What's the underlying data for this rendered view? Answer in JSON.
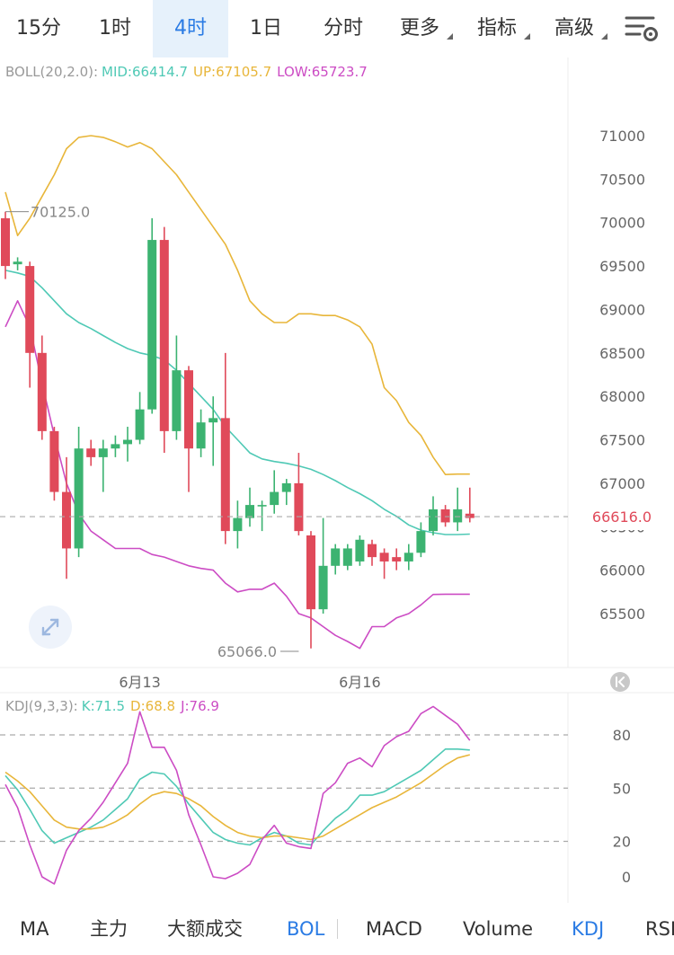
{
  "timeframe_tabs": [
    {
      "label": "15分",
      "active": false,
      "dropdown": false
    },
    {
      "label": "1时",
      "active": false,
      "dropdown": false
    },
    {
      "label": "4时",
      "active": true,
      "dropdown": false
    },
    {
      "label": "1日",
      "active": false,
      "dropdown": false
    },
    {
      "label": "分时",
      "active": false,
      "dropdown": false
    },
    {
      "label": "更多",
      "active": false,
      "dropdown": true
    },
    {
      "label": "指标",
      "active": false,
      "dropdown": true
    },
    {
      "label": "高级",
      "active": false,
      "dropdown": true
    }
  ],
  "settings_icon": "chart-settings-icon",
  "expand_icon": "expand-icon",
  "collapse_icon": "skip-left-icon",
  "colors": {
    "up": "#3cb371",
    "down": "#e04a5a",
    "mid": "#4fc9b5",
    "upper": "#e8b63a",
    "lower": "#cc4cc4",
    "k": "#4fc9b5",
    "d": "#e8b63a",
    "j": "#cc4cc4",
    "active": "#2a7be4"
  },
  "chart_data": [
    {
      "type": "candlestick",
      "indicator_label": "BOLL(20,2.0):",
      "mid_label": "MID:66414.7",
      "up_label": "UP:67105.7",
      "low_label": "LOW:65723.7",
      "y_ticks": [
        "71000",
        "70500",
        "70000",
        "69500",
        "69000",
        "68500",
        "68000",
        "67500",
        "67000",
        "66500",
        "66000",
        "65500"
      ],
      "ylim": [
        65200,
        71900
      ],
      "x_tick_labels": [
        {
          "label": "6月13",
          "index": 11
        },
        {
          "label": "6月16",
          "index": 29
        }
      ],
      "high_annotation": {
        "label": "70125.0",
        "value": 70125,
        "index": 0
      },
      "low_annotation": {
        "label": "65066.0",
        "value": 65066,
        "index": 24
      },
      "last_price": {
        "label": "66616.0",
        "value": 66616
      },
      "candles": [
        {
          "o": 70050,
          "h": 70125,
          "l": 69350,
          "c": 69500
        },
        {
          "o": 69520,
          "h": 69600,
          "l": 69450,
          "c": 69550
        },
        {
          "o": 69500,
          "h": 69550,
          "l": 68100,
          "c": 68500
        },
        {
          "o": 68500,
          "h": 68700,
          "l": 67500,
          "c": 67600
        },
        {
          "o": 67600,
          "h": 67650,
          "l": 66800,
          "c": 66900
        },
        {
          "o": 66900,
          "h": 67300,
          "l": 65900,
          "c": 66250
        },
        {
          "o": 66250,
          "h": 67650,
          "l": 66150,
          "c": 67400
        },
        {
          "o": 67400,
          "h": 67500,
          "l": 67200,
          "c": 67300
        },
        {
          "o": 67300,
          "h": 67500,
          "l": 66900,
          "c": 67400
        },
        {
          "o": 67400,
          "h": 67550,
          "l": 67300,
          "c": 67450
        },
        {
          "o": 67450,
          "h": 67650,
          "l": 67250,
          "c": 67500
        },
        {
          "o": 67500,
          "h": 68050,
          "l": 67450,
          "c": 67850
        },
        {
          "o": 67850,
          "h": 70050,
          "l": 67800,
          "c": 69800
        },
        {
          "o": 69800,
          "h": 69950,
          "l": 67350,
          "c": 67600
        },
        {
          "o": 67600,
          "h": 68700,
          "l": 67500,
          "c": 68300
        },
        {
          "o": 68300,
          "h": 68350,
          "l": 66900,
          "c": 67400
        },
        {
          "o": 67400,
          "h": 67850,
          "l": 67300,
          "c": 67700
        },
        {
          "o": 67700,
          "h": 68000,
          "l": 67200,
          "c": 67750
        },
        {
          "o": 67750,
          "h": 68500,
          "l": 66300,
          "c": 66450
        },
        {
          "o": 66450,
          "h": 66800,
          "l": 66250,
          "c": 66600
        },
        {
          "o": 66600,
          "h": 66950,
          "l": 66500,
          "c": 66750
        },
        {
          "o": 66750,
          "h": 66800,
          "l": 66450,
          "c": 66750
        },
        {
          "o": 66750,
          "h": 67150,
          "l": 66650,
          "c": 66900
        },
        {
          "o": 66900,
          "h": 67050,
          "l": 66750,
          "c": 67000
        },
        {
          "o": 67000,
          "h": 67350,
          "l": 66400,
          "c": 66450
        },
        {
          "o": 66400,
          "h": 66450,
          "l": 65100,
          "c": 65550
        },
        {
          "o": 65550,
          "h": 66600,
          "l": 65500,
          "c": 66050
        },
        {
          "o": 66050,
          "h": 66300,
          "l": 65950,
          "c": 66250
        },
        {
          "o": 66050,
          "h": 66300,
          "l": 66000,
          "c": 66250
        },
        {
          "o": 66100,
          "h": 66400,
          "l": 66050,
          "c": 66350
        },
        {
          "o": 66300,
          "h": 66350,
          "l": 66050,
          "c": 66150
        },
        {
          "o": 66200,
          "h": 66250,
          "l": 65900,
          "c": 66100
        },
        {
          "o": 66150,
          "h": 66250,
          "l": 66000,
          "c": 66100
        },
        {
          "o": 66100,
          "h": 66300,
          "l": 66000,
          "c": 66200
        },
        {
          "o": 66200,
          "h": 66550,
          "l": 66150,
          "c": 66450
        },
        {
          "o": 66450,
          "h": 66850,
          "l": 66400,
          "c": 66700
        },
        {
          "o": 66700,
          "h": 66750,
          "l": 66500,
          "c": 66550
        },
        {
          "o": 66550,
          "h": 66950,
          "l": 66450,
          "c": 66700
        },
        {
          "o": 66650,
          "h": 66950,
          "l": 66550,
          "c": 66600
        }
      ],
      "mid_values": [
        69450,
        69420,
        69380,
        69250,
        69100,
        68950,
        68850,
        68780,
        68700,
        68620,
        68550,
        68500,
        68470,
        68420,
        68300,
        68150,
        68000,
        67850,
        67650,
        67500,
        67350,
        67280,
        67250,
        67230,
        67200,
        67160,
        67100,
        67030,
        66950,
        66880,
        66800,
        66700,
        66620,
        66520,
        66460,
        66430,
        66410,
        66410,
        66414.7
      ],
      "upper_values": [
        70350,
        69850,
        70050,
        70300,
        70550,
        70850,
        70980,
        71000,
        70980,
        70930,
        70870,
        70920,
        70850,
        70700,
        70550,
        70350,
        70150,
        69950,
        69750,
        69450,
        69100,
        68950,
        68850,
        68850,
        68950,
        68950,
        68930,
        68930,
        68880,
        68800,
        68600,
        68100,
        67950,
        67700,
        67550,
        67300,
        67100,
        67105.7,
        67105.7
      ],
      "lower_values": [
        68800,
        69100,
        68800,
        68150,
        67550,
        67000,
        66650,
        66450,
        66350,
        66250,
        66250,
        66250,
        66180,
        66150,
        66100,
        66050,
        66020,
        66000,
        65850,
        65750,
        65780,
        65780,
        65850,
        65700,
        65500,
        65450,
        65350,
        65250,
        65180,
        65100,
        65350,
        65350,
        65450,
        65500,
        65600,
        65720,
        65723.7,
        65723.7,
        65723.7
      ]
    },
    {
      "type": "line",
      "indicator_label": "KDJ(9,3,3):",
      "k_label": "K:71.5",
      "d_label": "D:68.8",
      "j_label": "J:76.9",
      "y_ticks": [
        "80",
        "50",
        "20",
        "0"
      ],
      "ylim": [
        -8,
        108
      ],
      "series": [
        {
          "name": "K",
          "values": [
            57,
            49,
            38,
            26,
            19,
            22,
            25,
            28,
            32,
            38,
            44,
            55,
            59,
            58,
            51,
            41,
            33,
            25,
            21,
            19,
            18,
            22,
            25,
            23,
            19,
            18,
            26,
            33,
            38,
            46,
            46,
            48,
            52,
            56,
            60,
            66,
            72,
            72,
            71.5
          ]
        },
        {
          "name": "D",
          "values": [
            59,
            54,
            48,
            40,
            32,
            28,
            27,
            27,
            28,
            31,
            35,
            41,
            46,
            48,
            47,
            44,
            40,
            34,
            29,
            25,
            23,
            22,
            23,
            23,
            22,
            21,
            23,
            27,
            31,
            35,
            39,
            42,
            45,
            49,
            53,
            58,
            63,
            67,
            68.8
          ]
        },
        {
          "name": "J",
          "values": [
            52,
            39,
            18,
            0,
            -4,
            15,
            26,
            33,
            42,
            53,
            64,
            93,
            73,
            73,
            60,
            35,
            18,
            0,
            -1,
            2,
            7,
            21,
            29,
            19,
            17,
            16,
            47,
            53,
            64,
            67,
            62,
            74,
            79,
            82,
            92,
            96,
            91,
            86,
            76.9
          ]
        }
      ]
    }
  ],
  "indicator_tabs": [
    {
      "label": "MA",
      "active": false
    },
    {
      "label": "主力",
      "active": false
    },
    {
      "label": "大额成交",
      "active": false
    },
    {
      "label": "BOL",
      "active": true
    },
    {
      "label": "MACD",
      "active": false
    },
    {
      "label": "Volume",
      "active": false
    },
    {
      "label": "KDJ",
      "active": true
    },
    {
      "label": "RSI",
      "active": false
    }
  ]
}
